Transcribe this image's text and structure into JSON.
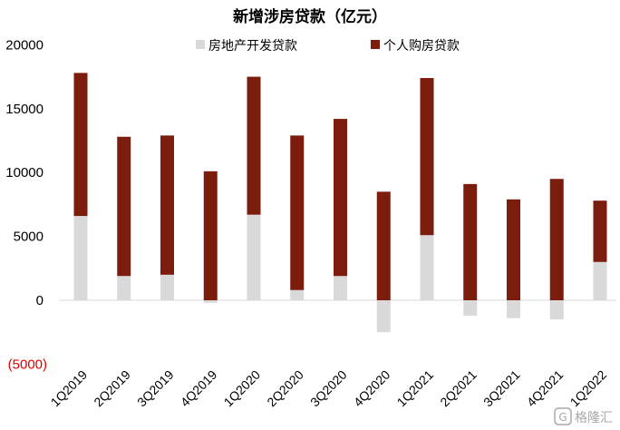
{
  "chart_data": {
    "type": "bar",
    "stacked": true,
    "title": "新增涉房贷款（亿元）",
    "categories": [
      "1Q2019",
      "2Q2019",
      "3Q2019",
      "4Q2019",
      "1Q2020",
      "2Q2020",
      "3Q2020",
      "4Q2020",
      "1Q2021",
      "2Q2021",
      "3Q2021",
      "4Q2021",
      "1Q2022"
    ],
    "series": [
      {
        "name": "房地产开发贷款",
        "color": "#d9d9d9",
        "values": [
          6600,
          1900,
          2000,
          -200,
          6700,
          800,
          1900,
          -2500,
          5100,
          -1200,
          -1400,
          -1500,
          3000
        ]
      },
      {
        "name": "个人购房贷款",
        "color": "#7b1c0c",
        "values": [
          11200,
          10900,
          10900,
          10100,
          10800,
          12100,
          12300,
          8500,
          12300,
          9100,
          7900,
          9500,
          4800
        ]
      }
    ],
    "y_ticks": [
      "20000",
      "15000",
      "10000",
      "5000",
      "0",
      "(5000)"
    ],
    "ylim": [
      -5000,
      20000
    ],
    "legend_position": "top",
    "grid": false
  },
  "watermark": {
    "text": "格隆汇",
    "icon": "logo-g"
  }
}
